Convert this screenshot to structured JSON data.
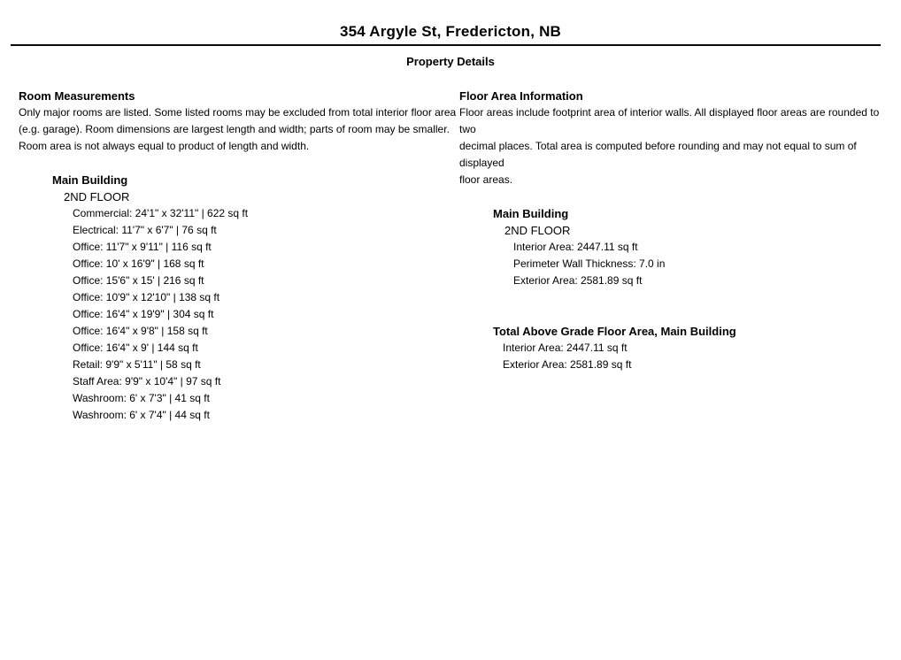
{
  "header": {
    "title": "354 Argyle St, Fredericton, NB",
    "subtitle": "Property Details"
  },
  "room_measurements": {
    "heading": "Room Measurements",
    "description_lines": [
      "Only major rooms are listed. Some listed rooms may be excluded from total interior floor area",
      "(e.g. garage). Room dimensions are largest length and width; parts of room may be smaller.",
      "Room area is not always equal to product of length and width."
    ],
    "building": {
      "name": "Main Building",
      "floor": "2ND FLOOR",
      "rooms": [
        {
          "type": "Commercial",
          "size": "24'1\" x 32'11\"",
          "area": "622 sq ft"
        },
        {
          "type": "Electrical",
          "size": "11'7\" x 6'7\"",
          "area": "76 sq ft"
        },
        {
          "type": "Office",
          "size": "11'7\" x 9'11\"",
          "area": "116 sq ft"
        },
        {
          "type": "Office",
          "size": "10' x 16'9\"",
          "area": "168 sq ft"
        },
        {
          "type": "Office",
          "size": "15'6\" x 15'",
          "area": "216 sq ft"
        },
        {
          "type": "Office",
          "size": "10'9\" x 12'10\"",
          "area": "138 sq ft"
        },
        {
          "type": "Office",
          "size": "16'4\" x 19'9\"",
          "area": "304 sq ft"
        },
        {
          "type": "Office",
          "size": "16'4\" x 9'8\"",
          "area": "158 sq ft"
        },
        {
          "type": "Office",
          "size": "16'4\" x 9'",
          "area": "144 sq ft"
        },
        {
          "type": "Retail",
          "size": "9'9\" x 5'11\"",
          "area": "58 sq ft"
        },
        {
          "type": "Staff Area",
          "size": "9'9\" x 10'4\"",
          "area": "97 sq ft"
        },
        {
          "type": "Washroom",
          "size": "6' x 7'3\"",
          "area": "41 sq ft"
        },
        {
          "type": "Washroom",
          "size": "6' x 7'4\"",
          "area": "44 sq ft"
        }
      ]
    }
  },
  "floor_area_information": {
    "heading": "Floor Area Information",
    "description_lines": [
      "Floor areas include footprint area of interior walls. All displayed floor areas are rounded to two",
      "decimal places. Total area is computed before rounding and may not equal to sum of displayed",
      "floor areas."
    ],
    "building": {
      "name": "Main Building",
      "floor": "2ND FLOOR",
      "details": [
        {
          "label": "Interior Area",
          "value": "2447.11 sq ft"
        },
        {
          "label": "Perimeter Wall Thickness",
          "value": "7.0 in"
        },
        {
          "label": "Exterior Area",
          "value": "2581.89 sq ft"
        }
      ]
    },
    "total": {
      "heading": "Total Above Grade Floor Area, Main Building",
      "details": [
        {
          "label": "Interior Area",
          "value": "2447.11 sq ft"
        },
        {
          "label": "Exterior Area",
          "value": "2581.89 sq ft"
        }
      ]
    }
  }
}
